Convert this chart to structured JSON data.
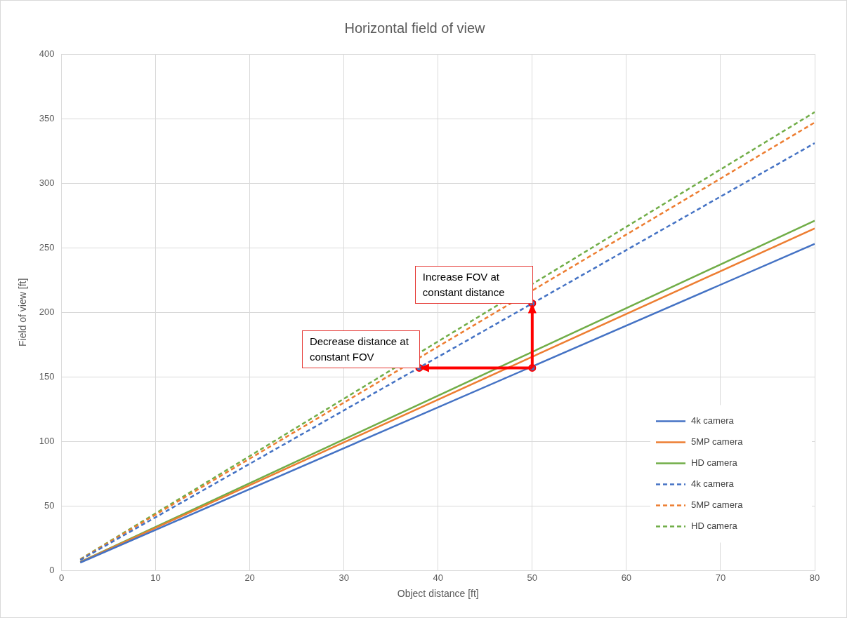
{
  "chart_data": {
    "type": "line",
    "title": "Horizontal field of view",
    "xlabel": "Object distance [ft]",
    "ylabel": "Field of view [ft]",
    "xlim": [
      0,
      80
    ],
    "xticks": [
      0,
      10,
      20,
      30,
      40,
      50,
      60,
      70,
      80
    ],
    "ylim": [
      0,
      400
    ],
    "yticks": [
      0,
      50,
      100,
      150,
      200,
      250,
      300,
      350,
      400
    ],
    "grid": true,
    "legend": "bottom right",
    "marker": "none",
    "series": [
      {
        "name": "4k camera",
        "color": "#4472c4",
        "x": [
          2,
          80
        ],
        "values": [
          6.3,
          253
        ],
        "line_style": "solid"
      },
      {
        "name": "5MP camera",
        "color": "#ed7d31",
        "x": [
          2,
          80
        ],
        "values": [
          6.6,
          265
        ],
        "line_style": "solid"
      },
      {
        "name": "HD camera",
        "color": "#70ad47",
        "x": [
          2,
          80
        ],
        "values": [
          6.8,
          271
        ],
        "line_style": "solid"
      },
      {
        "name": "4k camera",
        "color": "#4472c4",
        "x": [
          2,
          80
        ],
        "values": [
          8.3,
          331
        ],
        "line_style": "dashed"
      },
      {
        "name": "5MP camera",
        "color": "#ed7d31",
        "x": [
          2,
          80
        ],
        "values": [
          8.7,
          347
        ],
        "line_style": "dashed"
      },
      {
        "name": "HD camera",
        "color": "#70ad47",
        "x": [
          2,
          80
        ],
        "values": [
          8.9,
          355
        ],
        "line_style": "dashed"
      },
      {
        "type": "scatter",
        "color": "#ff0000",
        "x": [
          50,
          50,
          38
        ],
        "values": [
          157,
          207,
          157
        ],
        "marker": "circle"
      }
    ],
    "annotations": [
      {
        "text": "Increase FOV at constant distance",
        "x": 50,
        "y": 207
      },
      {
        "text": "Decrease distance at constant FOV",
        "x": 38,
        "y": 157
      }
    ]
  }
}
